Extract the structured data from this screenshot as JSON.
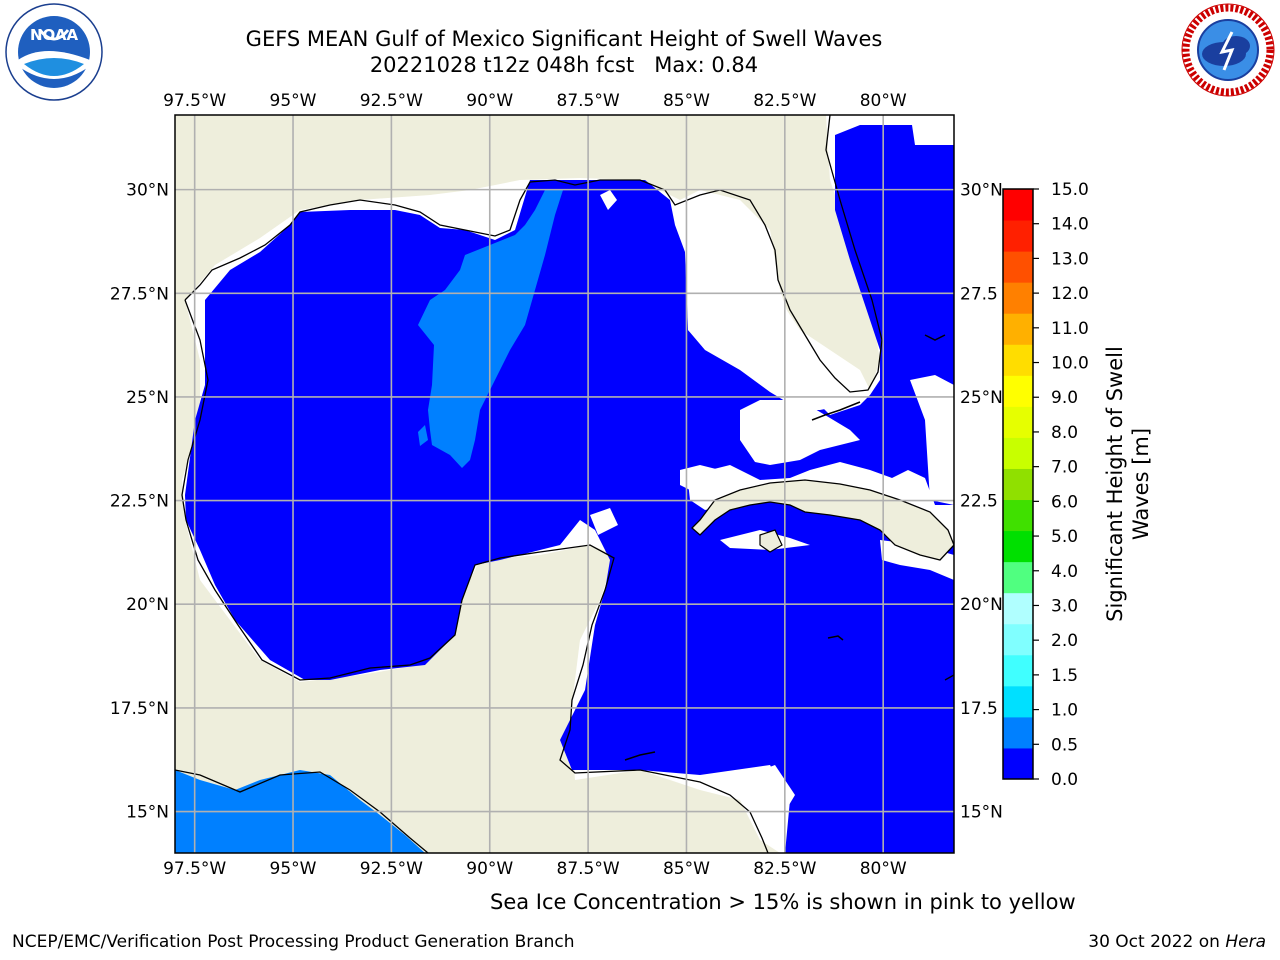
{
  "header": {
    "title_line1": "GEFS MEAN Gulf of Mexico Significant Height of Swell Waves",
    "title_line2": "20221028 t12z 048h fcst   Max: 0.84"
  },
  "logos": {
    "left": {
      "name": "noaa-logo",
      "text": "NOAA",
      "ring_text": "NATIONAL OCEANIC AND ATMOSPHERIC ADMINISTRATION · U.S. DEPARTMENT OF COMMERCE"
    },
    "right": {
      "name": "nws-logo",
      "ring_text": "NATIONAL WEATHER SERVICE"
    }
  },
  "map": {
    "lon_range": [
      -98.0,
      -78.2
    ],
    "lat_range": [
      14.0,
      31.8
    ],
    "lon_ticks": [
      "97.5°W",
      "95°W",
      "92.5°W",
      "90°W",
      "87.5°W",
      "85°W",
      "82.5°W",
      "80°W"
    ],
    "lon_tick_values": [
      -97.5,
      -95,
      -92.5,
      -90,
      -87.5,
      -85,
      -82.5,
      -80
    ],
    "lat_ticks_left": [
      "30°N",
      "27.5°N",
      "25°N",
      "22.5°N",
      "20°N",
      "17.5°N",
      "15°N"
    ],
    "lat_ticks_right": [
      "30°N",
      "27.5",
      "25°N",
      "22.5",
      "20°N",
      "17.5",
      "15°N"
    ],
    "lat_tick_values": [
      30,
      27.5,
      25,
      22.5,
      20,
      17.5,
      15
    ],
    "colors": {
      "land": "#eeeedc",
      "ocean_low": "#0000ff",
      "ocean_mid": "#0080ff",
      "grid": "#b0b0b0"
    }
  },
  "colorbar": {
    "label": "Significant Height of Swell Waves [m]",
    "label_line1": "Significant Height of Swell",
    "label_line2": "Waves [m]",
    "tick_labels": [
      "0.0",
      "0.5",
      "1.0",
      "1.5",
      "2.0",
      "3.0",
      "4.0",
      "5.0",
      "6.0",
      "7.0",
      "8.0",
      "9.0",
      "10.0",
      "11.0",
      "12.0",
      "13.0",
      "14.0",
      "15.0"
    ],
    "colors": [
      "#0000ff",
      "#0080ff",
      "#00e0ff",
      "#40ffff",
      "#80ffff",
      "#b0ffff",
      "#50ff80",
      "#00e000",
      "#40e000",
      "#90e000",
      "#c8ff00",
      "#e6ff00",
      "#ffff00",
      "#ffdd00",
      "#ffb000",
      "#ff8000",
      "#ff5000",
      "#ff2000",
      "#ff0000"
    ]
  },
  "footer": {
    "note": "Sea Ice Concentration > 15% is shown in pink to yellow",
    "left": "NCEP/EMC/Verification Post Processing Product Generation Branch",
    "right_date": "30 Oct 2022 on",
    "right_system": "Hera"
  }
}
